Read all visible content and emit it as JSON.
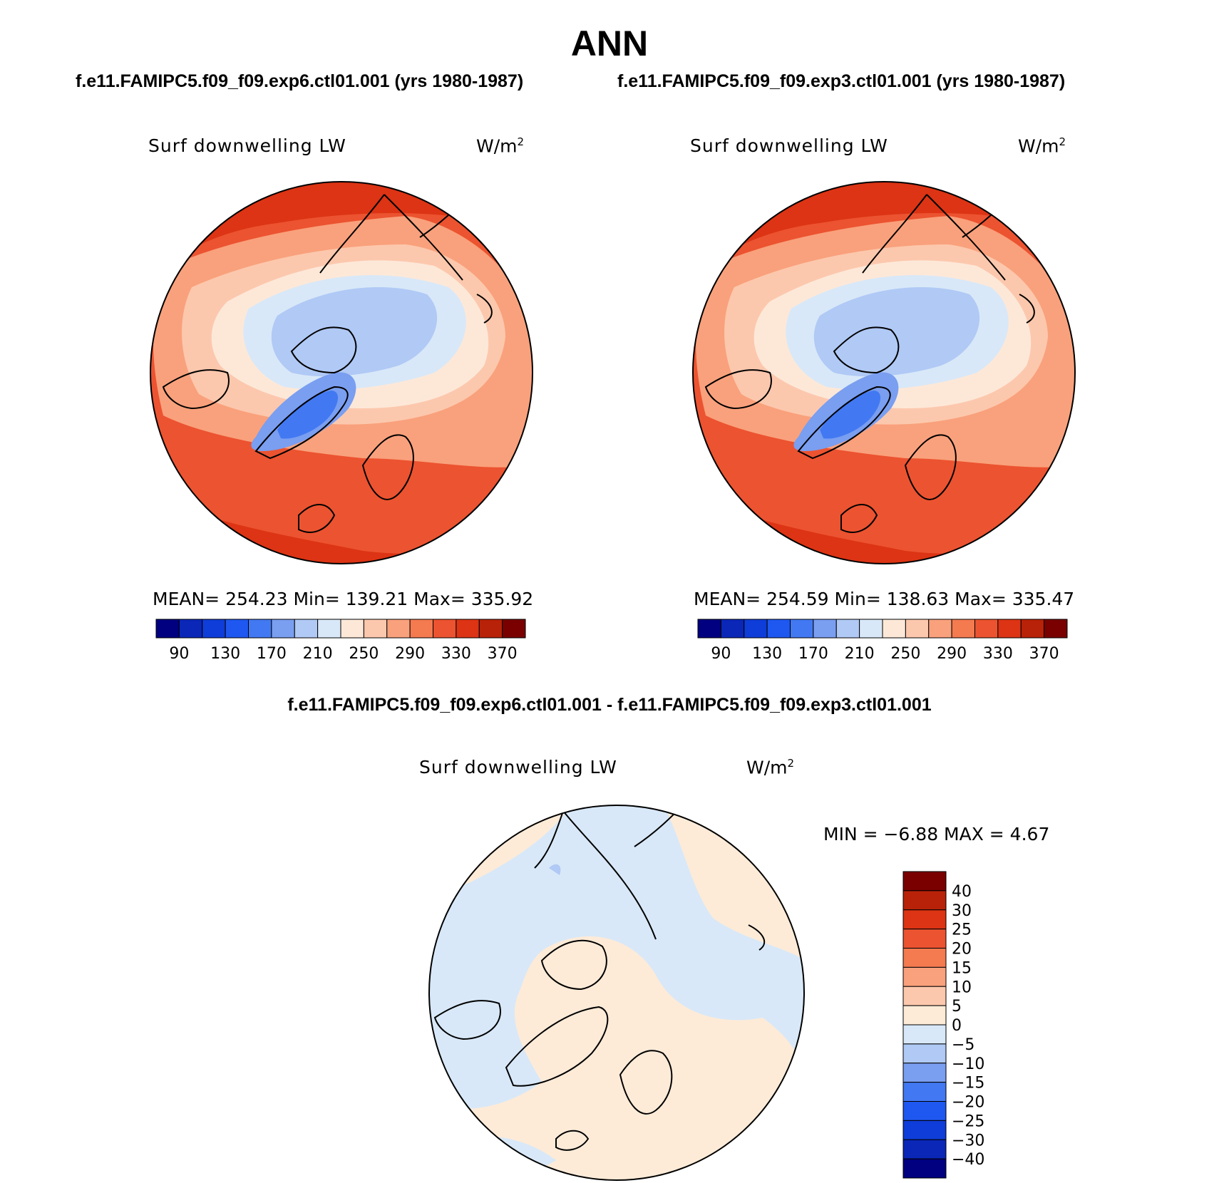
{
  "figure": {
    "season": "ANN",
    "diff_title": "f.e11.FAMIPC5.f09_f09.exp6.ctl01.001 - f.e11.FAMIPC5.f09_f09.exp3.ctl01.001"
  },
  "panels": [
    {
      "case_title": "f.e11.FAMIPC5.f09_f09.exp6.ctl01.001 (yrs 1980-1987)",
      "variable": "Surf downwelling LW",
      "units": "W/m",
      "units_exp": "2",
      "stats": "MEAN= 254.23   Min= 139.21   Max= 335.92"
    },
    {
      "case_title": "f.e11.FAMIPC5.f09_f09.exp3.ctl01.001 (yrs 1980-1987)",
      "variable": "Surf downwelling LW",
      "units": "W/m",
      "units_exp": "2",
      "stats": "MEAN= 254.59   Min= 138.63   Max= 335.47"
    },
    {
      "variable": "Surf downwelling LW",
      "units": "W/m",
      "units_exp": "2",
      "stats": "MIN =   −6.88  MAX =    4.67"
    }
  ],
  "colorbar_abs": {
    "colors": [
      "#000080",
      "#0a27b8",
      "#0f3dd9",
      "#1f58f0",
      "#4279f2",
      "#7a9ef0",
      "#b0c9f5",
      "#d8e8f8",
      "#fde8d8",
      "#fcc8ad",
      "#f9a17c",
      "#f47a50",
      "#ec5330",
      "#dc3414",
      "#b82208",
      "#7a0000"
    ],
    "tick_labels": [
      "90",
      "130",
      "170",
      "210",
      "250",
      "290",
      "330",
      "370"
    ]
  },
  "colorbar_diff": {
    "colors": [
      "#7a0000",
      "#b82208",
      "#dc3414",
      "#ec5330",
      "#f47a50",
      "#f9a17c",
      "#fcc8ad",
      "#fdebd8",
      "#d8e8f8",
      "#b0c9f5",
      "#7a9ef0",
      "#4279f2",
      "#1f58f0",
      "#0f3dd9",
      "#0a27b8",
      "#000080"
    ],
    "tick_labels": [
      "40",
      "30",
      "25",
      "20",
      "15",
      "10",
      "5",
      "0",
      "−5",
      "−10",
      "−15",
      "−20",
      "−25",
      "−30",
      "−40"
    ]
  }
}
